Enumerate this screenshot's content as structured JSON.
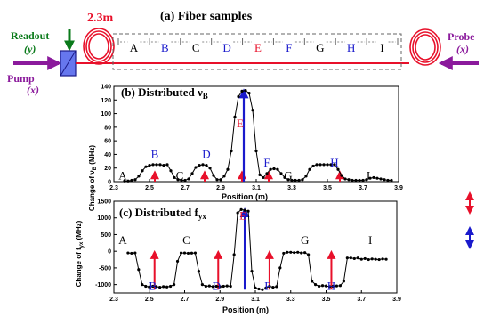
{
  "colors": {
    "red": "#e8102a",
    "blue": "#1a1acc",
    "green": "#0a7a1a",
    "purple": "#8b1a9c",
    "black": "#000000"
  },
  "fiber_panel": {
    "title": "(a) Fiber samples",
    "length_label": "2.3m",
    "readout_label": "Readout",
    "readout_pol": "(y)",
    "pump_label": "Pump",
    "pump_pol": "(x)",
    "probe_label": "Probe",
    "probe_pol": "(x)",
    "segments": [
      {
        "label": "A",
        "color": "black"
      },
      {
        "label": "B",
        "color": "blue"
      },
      {
        "label": "C",
        "color": "black"
      },
      {
        "label": "D",
        "color": "blue"
      },
      {
        "label": "E",
        "color": "red"
      },
      {
        "label": "F",
        "color": "blue"
      },
      {
        "label": "G",
        "color": "black"
      },
      {
        "label": "H",
        "color": "blue"
      },
      {
        "label": "I",
        "color": "black"
      }
    ]
  },
  "chart_data": [
    {
      "type": "line",
      "title_main": "(b) Distributed ν",
      "title_sub": "B",
      "xlabel": "Position (m)",
      "ylabel": "Change of ν",
      "ylabel_sub": "B",
      "ylabel_unit": " (MHz)",
      "xlim": [
        2.3,
        3.9
      ],
      "ylim": [
        0,
        140
      ],
      "xticks": [
        "2.3",
        "2.5",
        "2.7",
        "2.9",
        "3.1",
        "3.3",
        "3.5",
        "3.7",
        "3.9"
      ],
      "yticks": [
        "0",
        "20",
        "40",
        "60",
        "80",
        "100",
        "120",
        "140"
      ],
      "x": [
        2.36,
        2.38,
        2.4,
        2.42,
        2.44,
        2.46,
        2.48,
        2.5,
        2.52,
        2.54,
        2.56,
        2.58,
        2.6,
        2.62,
        2.64,
        2.66,
        2.68,
        2.7,
        2.72,
        2.74,
        2.76,
        2.78,
        2.8,
        2.82,
        2.84,
        2.86,
        2.88,
        2.9,
        2.92,
        2.94,
        2.96,
        2.98,
        3.0,
        3.02,
        3.04,
        3.06,
        3.08,
        3.1,
        3.12,
        3.14,
        3.16,
        3.18,
        3.2,
        3.22,
        3.24,
        3.26,
        3.28,
        3.3,
        3.32,
        3.34,
        3.36,
        3.38,
        3.4,
        3.42,
        3.44,
        3.46,
        3.48,
        3.5,
        3.52,
        3.54,
        3.56,
        3.58,
        3.6,
        3.62,
        3.64,
        3.66,
        3.68,
        3.7,
        3.72,
        3.74,
        3.76,
        3.78,
        3.8,
        3.82,
        3.84,
        3.86
      ],
      "y": [
        1,
        1,
        2,
        3,
        8,
        16,
        22,
        24,
        25,
        25,
        25,
        24,
        25,
        16,
        6,
        3,
        2,
        2,
        4,
        12,
        21,
        24,
        25,
        24,
        20,
        9,
        3,
        3,
        8,
        18,
        45,
        95,
        125,
        133,
        134,
        130,
        105,
        45,
        10,
        6,
        12,
        18,
        19,
        18,
        12,
        6,
        3,
        2,
        2,
        2,
        3,
        8,
        18,
        23,
        25,
        25,
        25,
        25,
        25,
        25,
        18,
        9,
        4,
        3,
        2,
        2,
        2,
        2,
        3,
        5,
        6,
        5,
        4,
        3,
        2,
        2
      ],
      "labels": [
        {
          "text": "A",
          "color": "black",
          "x": 2.35,
          "y": 3
        },
        {
          "text": "B",
          "color": "blue",
          "x": 2.53,
          "y": 35
        },
        {
          "text": "C",
          "color": "black",
          "x": 2.67,
          "y": 3
        },
        {
          "text": "D",
          "color": "blue",
          "x": 2.82,
          "y": 35
        },
        {
          "text": "E",
          "color": "red",
          "x": 3.01,
          "y": 80
        },
        {
          "text": "F",
          "color": "blue",
          "x": 3.16,
          "y": 22
        },
        {
          "text": "G",
          "color": "black",
          "x": 3.28,
          "y": 3
        },
        {
          "text": "H",
          "color": "blue",
          "x": 3.54,
          "y": 22
        },
        {
          "text": "I",
          "color": "black",
          "x": 3.73,
          "y": 3
        }
      ],
      "arrows": [
        {
          "x": 2.53,
          "y0": 0,
          "y1": 14,
          "color": "red"
        },
        {
          "x": 2.81,
          "y0": 0,
          "y1": 14,
          "color": "red"
        },
        {
          "x": 3.02,
          "y0": 0,
          "y1": 14,
          "color": "red"
        },
        {
          "x": 3.17,
          "y0": 0,
          "y1": 14,
          "color": "red"
        },
        {
          "x": 3.57,
          "y0": 0,
          "y1": 14,
          "color": "red"
        },
        {
          "x": 3.03,
          "y0": 0,
          "y1": 134,
          "color": "blue"
        }
      ]
    },
    {
      "type": "line",
      "title_main": "(c) Distributed f",
      "title_sub": "yx",
      "xlabel": "Position (m)",
      "ylabel": "Change of f",
      "ylabel_sub": "yx",
      "ylabel_unit": " (MHz)",
      "xlim": [
        2.3,
        3.9
      ],
      "ylim": [
        -1250,
        1500
      ],
      "xticks": [
        "2.3",
        "2.5",
        "2.7",
        "2.9",
        "3.1",
        "3.3",
        "3.5",
        "3.7",
        "3.9"
      ],
      "yticks": [
        "-1000",
        "-500",
        "0",
        "500",
        "1000",
        "1500"
      ],
      "x": [
        2.38,
        2.4,
        2.42,
        2.44,
        2.46,
        2.48,
        2.5,
        2.52,
        2.54,
        2.56,
        2.58,
        2.6,
        2.62,
        2.64,
        2.66,
        2.68,
        2.7,
        2.72,
        2.74,
        2.76,
        2.78,
        2.8,
        2.82,
        2.84,
        2.86,
        2.88,
        2.9,
        2.92,
        2.94,
        2.96,
        2.98,
        3.0,
        3.02,
        3.04,
        3.06,
        3.08,
        3.1,
        3.12,
        3.14,
        3.16,
        3.18,
        3.2,
        3.22,
        3.24,
        3.26,
        3.28,
        3.3,
        3.32,
        3.34,
        3.36,
        3.38,
        3.4,
        3.42,
        3.44,
        3.46,
        3.48,
        3.5,
        3.52,
        3.54,
        3.56,
        3.58,
        3.6,
        3.62,
        3.64,
        3.66,
        3.68,
        3.7,
        3.72,
        3.74,
        3.76,
        3.78,
        3.8,
        3.82,
        3.84
      ],
      "y": [
        -50,
        -60,
        -50,
        -550,
        -1000,
        -1050,
        -1070,
        -1050,
        -1060,
        -1080,
        -1060,
        -1070,
        -1050,
        -1000,
        -300,
        -50,
        -50,
        -60,
        -55,
        -50,
        -600,
        -1000,
        -1050,
        -1040,
        -1060,
        -1050,
        -1060,
        -1050,
        -1040,
        -1050,
        -100,
        1150,
        1250,
        1230,
        1200,
        -600,
        -1100,
        -1130,
        -1150,
        -1100,
        -1050,
        -1080,
        -1060,
        -500,
        -60,
        -30,
        -30,
        -40,
        -30,
        -50,
        -40,
        -100,
        -900,
        -1000,
        -1050,
        -1030,
        -1040,
        -1060,
        -1050,
        -1040,
        -1030,
        -900,
        -200,
        -200,
        -220,
        -200,
        -240,
        -220,
        -250,
        -230,
        -240,
        -250,
        -230,
        -240
      ],
      "labels": [
        {
          "text": "A",
          "color": "black",
          "x": 2.35,
          "y": 220
        },
        {
          "text": "B",
          "color": "blue",
          "x": 2.52,
          "y": -1150
        },
        {
          "text": "C",
          "color": "black",
          "x": 2.71,
          "y": 220
        },
        {
          "text": "D",
          "color": "blue",
          "x": 2.88,
          "y": -1150
        },
        {
          "text": "E",
          "color": "red",
          "x": 3.03,
          "y": 950
        },
        {
          "text": "F",
          "color": "blue",
          "x": 3.17,
          "y": -1150
        },
        {
          "text": "G",
          "color": "black",
          "x": 3.38,
          "y": 220
        },
        {
          "text": "H",
          "color": "blue",
          "x": 3.53,
          "y": -1150
        },
        {
          "text": "I",
          "color": "black",
          "x": 3.75,
          "y": 220
        }
      ],
      "arrows": [
        {
          "x": 2.53,
          "y0": -1150,
          "y1": -20,
          "color": "red"
        },
        {
          "x": 2.89,
          "y0": -1150,
          "y1": -20,
          "color": "red"
        },
        {
          "x": 3.18,
          "y0": -1150,
          "y1": -20,
          "color": "red"
        },
        {
          "x": 3.53,
          "y0": -1150,
          "y1": -20,
          "color": "red"
        },
        {
          "x": 3.04,
          "y0": -1150,
          "y1": 1250,
          "color": "blue"
        }
      ]
    }
  ],
  "legend": [
    {
      "type": "double-arrow",
      "color": "red"
    },
    {
      "type": "double-arrow",
      "color": "blue"
    }
  ]
}
